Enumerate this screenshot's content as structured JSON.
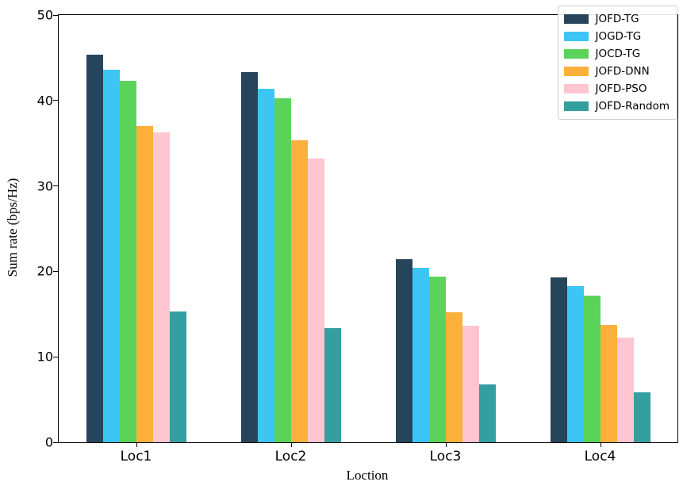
{
  "figure": {
    "x_axis_title": "Loction",
    "y_axis_title": "Sum rate (bps/Hz)"
  },
  "axes": {
    "y_ticks": [
      0,
      10,
      20,
      30,
      40,
      50
    ],
    "x_tick_labels": [
      "Loc1",
      "Loc2",
      "Loc3",
      "Loc4"
    ],
    "ylim": [
      0,
      50
    ],
    "grid": false
  },
  "legend": {
    "position": "upper right",
    "entries": [
      {
        "label": "JOFD-TG",
        "color": "#27455A"
      },
      {
        "label": "JOGD-TG",
        "color": "#3DC6F3"
      },
      {
        "label": "JOCD-TG",
        "color": "#5BD35B"
      },
      {
        "label": "JOFD-DNN",
        "color": "#FBB03B"
      },
      {
        "label": "JOFD-PSO",
        "color": "#FFC5D0"
      },
      {
        "label": "JOFD-Random",
        "color": "#339FA1"
      }
    ]
  },
  "chart_data": {
    "type": "bar",
    "title": "",
    "xlabel": "Loction",
    "ylabel": "Sum rate (bps/Hz)",
    "ylim": [
      0,
      50
    ],
    "grid": false,
    "legend_position": "upper right",
    "categories": [
      "Loc1",
      "Loc2",
      "Loc3",
      "Loc4"
    ],
    "series": [
      {
        "name": "JOFD-TG",
        "color": "#27455A",
        "values": [
          45.4,
          43.3,
          21.4,
          19.3
        ]
      },
      {
        "name": "JOGD-TG",
        "color": "#3DC6F3",
        "values": [
          43.6,
          41.4,
          20.4,
          18.3
        ]
      },
      {
        "name": "JOCD-TG",
        "color": "#5BD35B",
        "values": [
          42.3,
          40.3,
          19.4,
          17.2
        ]
      },
      {
        "name": "JOFD-DNN",
        "color": "#FBB03B",
        "values": [
          37.0,
          35.3,
          15.2,
          13.7
        ]
      },
      {
        "name": "JOFD-PSO",
        "color": "#FFC5D0",
        "values": [
          36.3,
          33.2,
          13.6,
          12.2
        ]
      },
      {
        "name": "JOFD-Random",
        "color": "#339FA1",
        "values": [
          15.3,
          13.4,
          6.8,
          5.8
        ]
      }
    ]
  }
}
